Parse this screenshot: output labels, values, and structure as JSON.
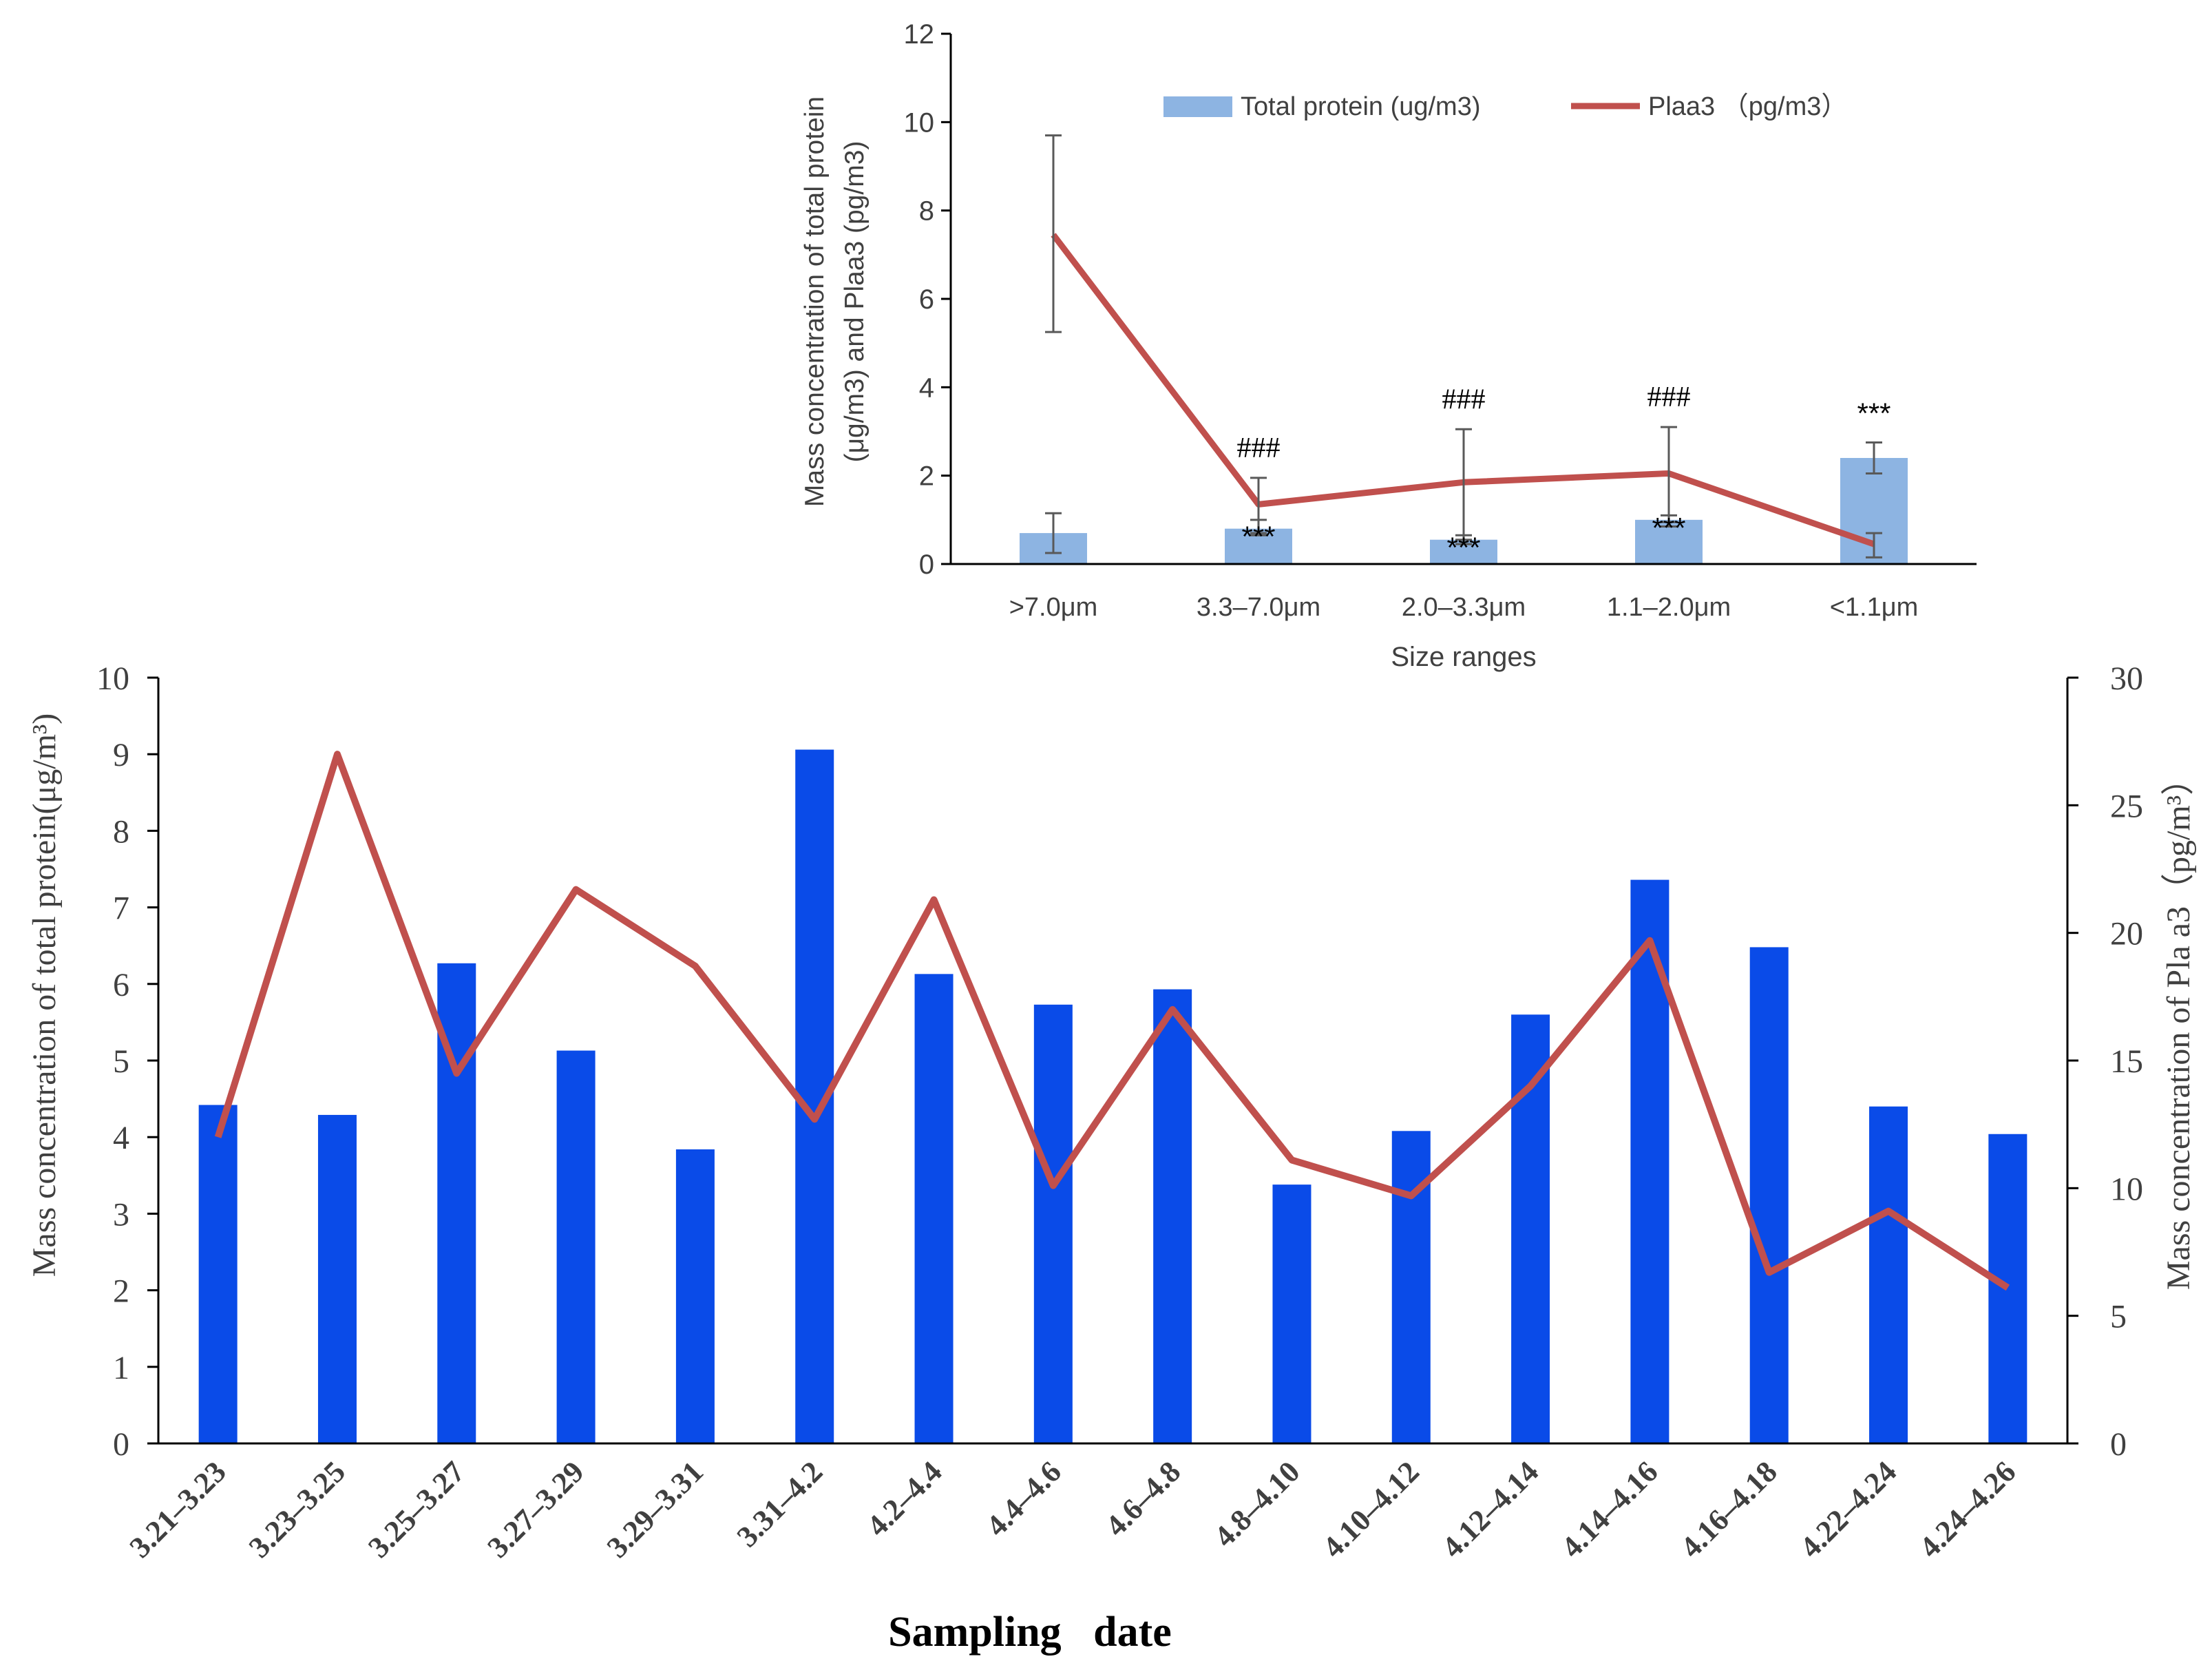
{
  "chart_data": [
    {
      "type": "bar",
      "xlabel": "Size ranges",
      "ylabel_lines": [
        "Mass concentration of total protein",
        "(μg/m3) and Plaa3 (pg/m3)"
      ],
      "ylim": [
        0,
        12
      ],
      "yticks": [
        "0",
        "2",
        "4",
        "6",
        "8",
        "10",
        "12"
      ],
      "legend_position": "top",
      "categories": [
        ">7.0μm",
        "3.3–7.0μm",
        "2.0–3.3μm",
        "1.1–2.0μm",
        "<1.1μm"
      ],
      "series": [
        {
          "name": "Total protein (ug/m3)",
          "kind": "bar",
          "color": "#8DB4E2",
          "values": [
            0.7,
            0.8,
            0.55,
            1.0,
            2.4
          ],
          "error": [
            [
              0.25,
              1.15
            ],
            [
              0.65,
              1.0
            ],
            [
              0.45,
              0.65
            ],
            [
              0.85,
              1.1
            ],
            [
              2.05,
              2.75
            ]
          ],
          "annotations": [
            "",
            "***",
            "***",
            "***",
            "***"
          ]
        },
        {
          "name": "Plaa3 （pg/m3）",
          "kind": "line",
          "color": "#C0504D",
          "values": [
            7.45,
            1.35,
            1.85,
            2.05,
            0.45
          ],
          "error": [
            [
              5.25,
              9.7
            ],
            [
              0.7,
              1.95
            ],
            [
              0.55,
              3.05
            ],
            [
              0.95,
              3.1
            ],
            [
              0.15,
              0.7
            ]
          ],
          "annotations": [
            "",
            "###",
            "###",
            "###",
            ""
          ]
        }
      ]
    },
    {
      "type": "bar",
      "xlabel": "Sampling   date",
      "ylabel": "Mass concentration of total protein(μg/m³)",
      "y2label": "Mass concentration of Pla a3（pg/m³）",
      "ylim": [
        0,
        10
      ],
      "y2lim": [
        0,
        30
      ],
      "yticks": [
        "0",
        "1",
        "2",
        "3",
        "4",
        "5",
        "6",
        "7",
        "8",
        "9",
        "10"
      ],
      "y2ticks": [
        "0",
        "5",
        "10",
        "15",
        "20",
        "25",
        "30"
      ],
      "categories": [
        "3.21–3.23",
        "3.23–3.25",
        "3.25–3.27",
        "3.27–3.29",
        "3.29–3.31",
        "3.31–4.2",
        "4.2–4.4",
        "4.4–4.6",
        "4.6–4.8",
        "4.8–4.10",
        "4.10–4.12",
        "4.12–4.14",
        "4.14–4.16",
        "4.16–4.18",
        "4.22–4.24",
        "4.24–4.26"
      ],
      "series": [
        {
          "name": "Total protein",
          "kind": "bar",
          "color": "#0A4BE8",
          "axis": "left",
          "values": [
            4.42,
            4.29,
            6.27,
            5.13,
            3.84,
            9.06,
            6.13,
            5.73,
            5.93,
            3.38,
            4.08,
            5.6,
            7.36,
            6.48,
            4.4,
            4.04
          ]
        },
        {
          "name": "Pla a3",
          "kind": "line",
          "color": "#C0504D",
          "axis": "right",
          "values": [
            12.0,
            27.0,
            14.5,
            21.7,
            18.7,
            12.7,
            21.3,
            10.1,
            17.0,
            11.1,
            9.7,
            14.0,
            19.7,
            6.7,
            9.1,
            6.1
          ]
        }
      ]
    }
  ]
}
